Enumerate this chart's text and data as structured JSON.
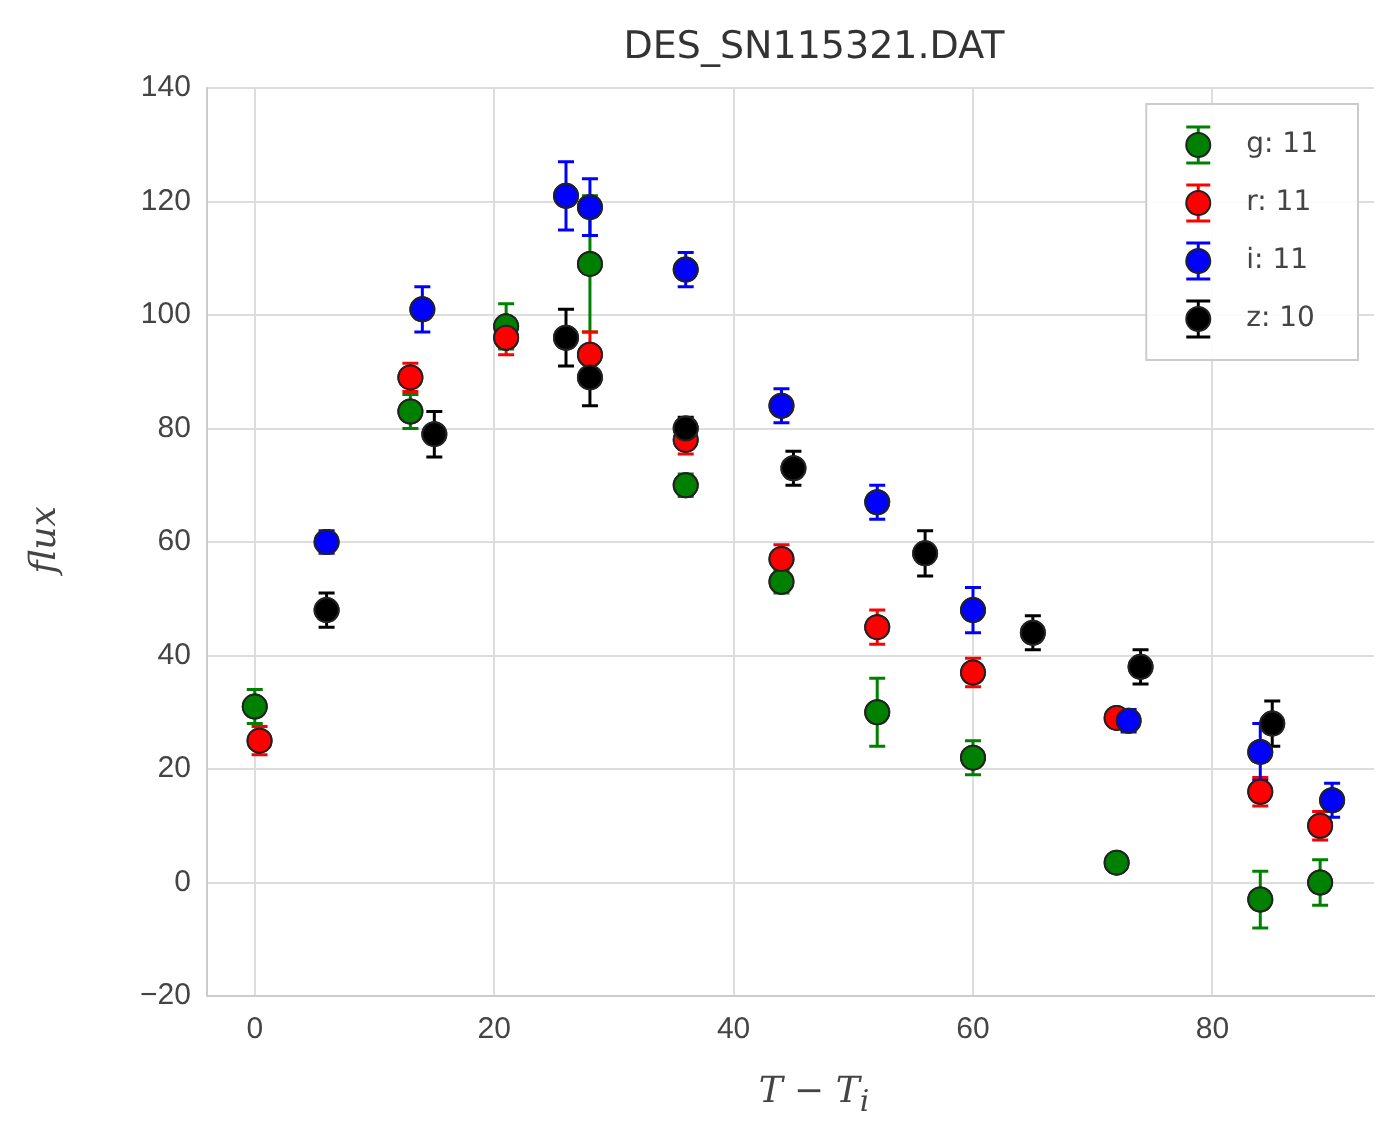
{
  "chart_data": {
    "type": "scatter",
    "title": "DES_SN115321.DAT",
    "xlabel": "T − T$_{i}$",
    "ylabel": "flux",
    "xlim": [
      -4,
      93.5
    ],
    "xticks": [
      0,
      20,
      40,
      60,
      80
    ],
    "ylim": [
      -20,
      140
    ],
    "yticks": [
      -20,
      0,
      20,
      40,
      60,
      80,
      100,
      120,
      140
    ],
    "grid": true,
    "legend": "top right",
    "marker": "circle",
    "series": [
      {
        "name": "g: 11",
        "color": "#008000",
        "x": [
          0,
          13,
          21,
          28,
          36,
          44,
          52,
          60,
          72,
          84,
          89
        ],
        "values": [
          31,
          83,
          98,
          109,
          70,
          53,
          30,
          22,
          3.5,
          -3,
          0
        ],
        "errors": [
          3,
          3,
          4,
          12,
          2,
          2,
          6,
          3,
          null,
          5,
          4
        ]
      },
      {
        "name": "r: 11",
        "color": "#ff0000",
        "x": [
          0.4,
          13,
          21,
          28,
          36,
          44,
          52,
          60,
          72,
          84,
          89
        ],
        "values": [
          25,
          89,
          96,
          93,
          78,
          57,
          45,
          37,
          29,
          16,
          10
        ],
        "errors": [
          2.5,
          2.5,
          3,
          4,
          2.5,
          2.5,
          3,
          2.5,
          null,
          2.5,
          2.5
        ]
      },
      {
        "name": "i: 11",
        "color": "#0000ff",
        "x": [
          6,
          14,
          26,
          28,
          36,
          44,
          52,
          60,
          73,
          84,
          90
        ],
        "values": [
          60,
          101,
          121,
          119,
          108,
          84,
          67,
          48,
          28.5,
          23,
          14.5
        ],
        "errors": [
          2,
          4,
          6,
          5,
          3,
          3,
          3,
          4,
          2,
          5,
          3
        ]
      },
      {
        "name": "z: 10",
        "color": "#000000",
        "x": [
          6,
          15,
          26,
          28,
          36,
          45,
          56,
          65,
          74,
          85
        ],
        "values": [
          48,
          79,
          96,
          89,
          80,
          73,
          58,
          44,
          38,
          28
        ],
        "errors": [
          3,
          4,
          5,
          5,
          2,
          3,
          4,
          3,
          3,
          4
        ]
      }
    ]
  }
}
